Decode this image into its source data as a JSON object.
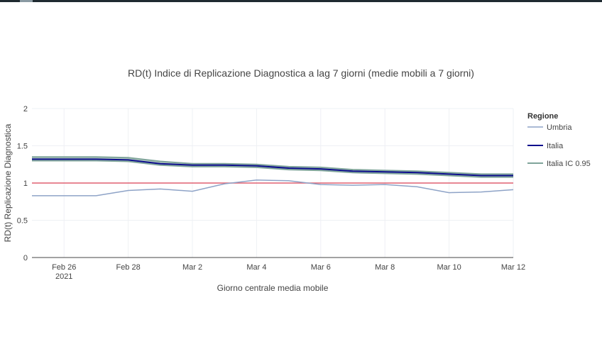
{
  "window": {
    "accent_color": "#1f2a30"
  },
  "chart_data": {
    "type": "line",
    "title": "RD(t) Indice di Replicazione Diagnostica a lag 7 giorni (medie mobili a 7 giorni)",
    "xlabel": "Giorno centrale media mobile",
    "ylabel": "RD(t) Replicazione Diagnostica",
    "x": [
      "2021-02-25",
      "2021-02-26",
      "2021-02-27",
      "2021-02-28",
      "2021-03-01",
      "2021-03-02",
      "2021-03-03",
      "2021-03-04",
      "2021-03-05",
      "2021-03-06",
      "2021-03-07",
      "2021-03-08",
      "2021-03-09",
      "2021-03-10",
      "2021-03-11",
      "2021-03-12"
    ],
    "xlim": [
      "2021-02-25",
      "2021-03-12"
    ],
    "ylim": [
      0,
      2
    ],
    "x_ticks": [
      {
        "date": "2021-02-26",
        "label": "Feb 26",
        "sublabel": "2021"
      },
      {
        "date": "2021-02-28",
        "label": "Feb 28",
        "sublabel": ""
      },
      {
        "date": "2021-03-02",
        "label": "Mar 2",
        "sublabel": ""
      },
      {
        "date": "2021-03-04",
        "label": "Mar 4",
        "sublabel": ""
      },
      {
        "date": "2021-03-06",
        "label": "Mar 6",
        "sublabel": ""
      },
      {
        "date": "2021-03-08",
        "label": "Mar 8",
        "sublabel": ""
      },
      {
        "date": "2021-03-10",
        "label": "Mar 10",
        "sublabel": ""
      },
      {
        "date": "2021-03-12",
        "label": "Mar 12",
        "sublabel": ""
      }
    ],
    "y_ticks": [
      {
        "value": 0,
        "label": "0"
      },
      {
        "value": 0.5,
        "label": "0.5"
      },
      {
        "value": 1,
        "label": "1"
      },
      {
        "value": 1.5,
        "label": "1.5"
      },
      {
        "value": 2,
        "label": "2"
      }
    ],
    "grid": true,
    "legend": {
      "title": "Regione",
      "position": "right"
    },
    "reference_line": {
      "value": 1,
      "color": "#e06070"
    },
    "series": [
      {
        "name": "Umbria",
        "color": "#8ea3c7",
        "values": [
          0.83,
          0.83,
          0.83,
          0.9,
          0.92,
          0.89,
          0.99,
          1.04,
          1.03,
          0.98,
          0.97,
          0.98,
          0.95,
          0.87,
          0.88,
          0.91
        ]
      },
      {
        "name": "Italia",
        "color": "#0d0d8c",
        "values": [
          1.32,
          1.32,
          1.32,
          1.31,
          1.26,
          1.24,
          1.24,
          1.23,
          1.2,
          1.19,
          1.16,
          1.15,
          1.14,
          1.12,
          1.1,
          1.1
        ]
      },
      {
        "name": "Italia IC 0.95",
        "color": "#7fa49a",
        "lower": [
          1.3,
          1.3,
          1.3,
          1.29,
          1.24,
          1.22,
          1.22,
          1.21,
          1.18,
          1.17,
          1.14,
          1.13,
          1.12,
          1.1,
          1.08,
          1.08
        ],
        "upper": [
          1.35,
          1.35,
          1.35,
          1.34,
          1.29,
          1.26,
          1.26,
          1.25,
          1.22,
          1.21,
          1.18,
          1.17,
          1.16,
          1.14,
          1.12,
          1.12
        ]
      }
    ]
  }
}
